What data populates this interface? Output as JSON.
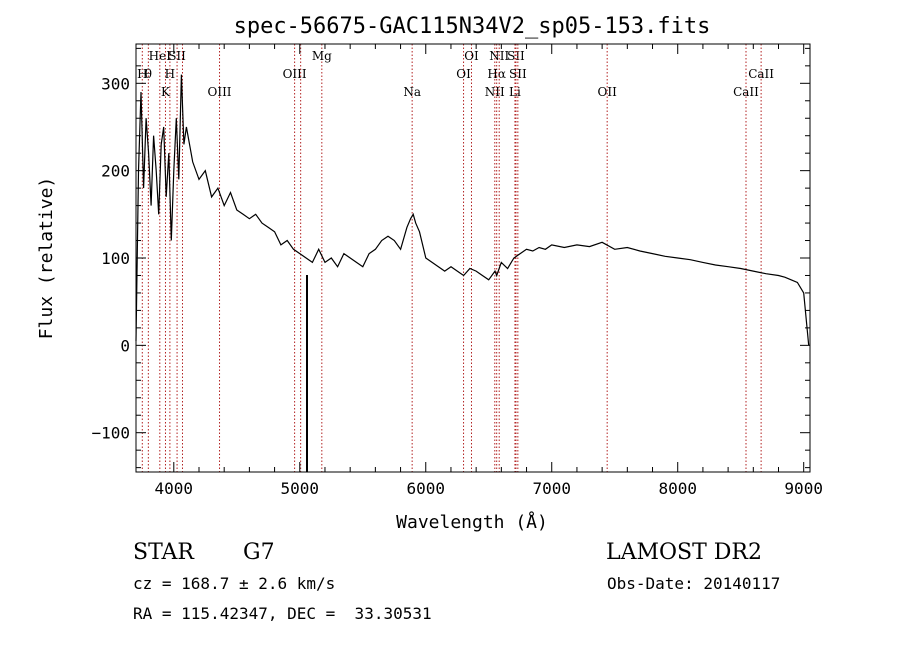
{
  "chart_data": {
    "type": "line",
    "title": "spec-56675-GAC115N34V2_sp05-153.fits",
    "xlabel": "Wavelength (Å)",
    "ylabel": "Flux (relative)",
    "xlim": [
      3700,
      9050
    ],
    "ylim": [
      -145,
      345
    ],
    "xticks": [
      4000,
      5000,
      6000,
      7000,
      8000,
      9000
    ],
    "xtick_labels": [
      "4000",
      "5000",
      "6000",
      "7000",
      "8000",
      "9000"
    ],
    "yticks": [
      -100,
      0,
      100,
      200,
      300
    ],
    "ytick_labels": [
      "−100",
      "0",
      "100",
      "200",
      "300"
    ],
    "line_color": "#000000",
    "marker_color": "#b22222",
    "series": [
      {
        "x": [
          3700,
          3720,
          3740,
          3760,
          3780,
          3800,
          3820,
          3840,
          3860,
          3880,
          3900,
          3920,
          3940,
          3960,
          3980,
          4000,
          4020,
          4040,
          4060,
          4080,
          4100,
          4150,
          4200,
          4250,
          4300,
          4350,
          4400,
          4450,
          4500,
          4550,
          4600,
          4650,
          4700,
          4750,
          4800,
          4850,
          4900,
          4950,
          5000,
          5050,
          5100,
          5150,
          5200,
          5250,
          5300,
          5350,
          5400,
          5450,
          5500,
          5550,
          5600,
          5650,
          5700,
          5750,
          5800,
          5850,
          5880,
          5900,
          5920,
          5950,
          6000,
          6050,
          6100,
          6150,
          6200,
          6250,
          6300,
          6350,
          6400,
          6450,
          6500,
          6550,
          6563,
          6600,
          6650,
          6700,
          6750,
          6800,
          6850,
          6900,
          6950,
          7000,
          7100,
          7200,
          7300,
          7400,
          7500,
          7600,
          7700,
          7800,
          7900,
          8000,
          8100,
          8200,
          8300,
          8400,
          8500,
          8600,
          8700,
          8800,
          8850,
          8900,
          8950,
          9000,
          9040
        ],
        "y": [
          5,
          200,
          290,
          180,
          260,
          220,
          160,
          240,
          200,
          150,
          230,
          250,
          170,
          220,
          120,
          200,
          260,
          190,
          310,
          230,
          250,
          210,
          190,
          200,
          170,
          180,
          160,
          175,
          155,
          150,
          145,
          150,
          140,
          135,
          130,
          115,
          120,
          110,
          105,
          100,
          95,
          110,
          95,
          100,
          90,
          105,
          100,
          95,
          90,
          105,
          110,
          120,
          125,
          120,
          110,
          135,
          145,
          150,
          140,
          130,
          100,
          95,
          90,
          85,
          90,
          85,
          80,
          88,
          85,
          80,
          75,
          85,
          80,
          95,
          88,
          100,
          105,
          110,
          108,
          112,
          110,
          115,
          112,
          115,
          113,
          118,
          110,
          112,
          108,
          105,
          102,
          100,
          98,
          95,
          92,
          90,
          88,
          85,
          82,
          80,
          78,
          75,
          72,
          60,
          0
        ]
      }
    ],
    "lines": [
      {
        "wavelength": 3750,
        "label": "H",
        "row": 1
      },
      {
        "wavelength": 3798,
        "label": "θ",
        "row": 1
      },
      {
        "wavelength": 3889,
        "label": "HeI",
        "row": 0
      },
      {
        "wavelength": 3934,
        "label": "K",
        "row": 2
      },
      {
        "wavelength": 3969,
        "label": "H",
        "row": 1
      },
      {
        "wavelength": 4026,
        "label": "SII",
        "row": 0
      },
      {
        "wavelength": 4069,
        "label": "",
        "row": 0
      },
      {
        "wavelength": 4363,
        "label": "OIII",
        "row": 2
      },
      {
        "wavelength": 4959,
        "label": "OIII",
        "row": 1
      },
      {
        "wavelength": 5007,
        "label": "",
        "row": 1
      },
      {
        "wavelength": 5175,
        "label": "Mg",
        "row": 0
      },
      {
        "wavelength": 5892,
        "label": "Na",
        "row": 2
      },
      {
        "wavelength": 6300,
        "label": "OI",
        "row": 1
      },
      {
        "wavelength": 6363,
        "label": "OI",
        "row": 0
      },
      {
        "wavelength": 6548,
        "label": "NII",
        "row": 2
      },
      {
        "wavelength": 6563,
        "label": "Hα",
        "row": 1
      },
      {
        "wavelength": 6583,
        "label": "NII",
        "row": 0
      },
      {
        "wavelength": 6716,
        "label": "SII",
        "row": 0
      },
      {
        "wavelength": 6708,
        "label": "Li",
        "row": 2
      },
      {
        "wavelength": 6731,
        "label": "SII",
        "row": 1
      },
      {
        "wavelength": 7440,
        "label": "OII",
        "row": 2
      },
      {
        "wavelength": 8542,
        "label": "CaII",
        "row": 2
      },
      {
        "wavelength": 8662,
        "label": "CaII",
        "row": 1
      }
    ],
    "grid": false
  },
  "info": {
    "class_label": "STAR",
    "subclass": "G7",
    "survey": "LAMOST DR2",
    "redshift": "cz = 168.7 ± 2.6 km/s",
    "obs_date": "Obs-Date: 20140117",
    "coords": "RA = 115.42347, DEC =  33.30531"
  }
}
